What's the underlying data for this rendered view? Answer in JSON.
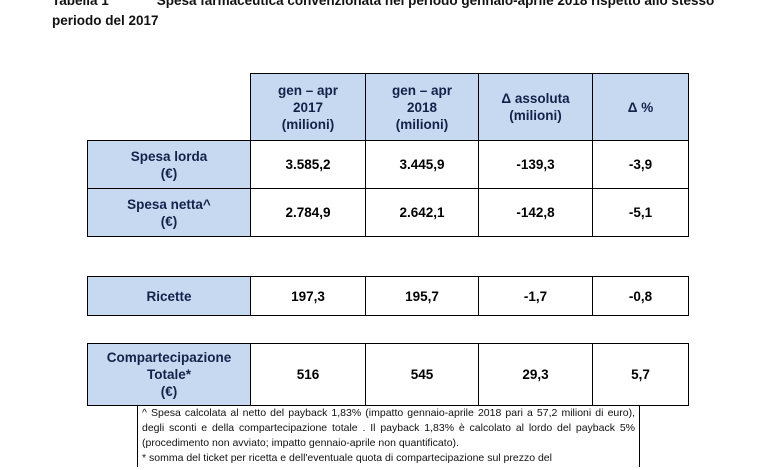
{
  "header": {
    "label": "Tabella 1",
    "title": "Spesa farmaceutica convenzionata nel periodo gennaio-aprile 2018 rispetto allo stesso periodo del 2017"
  },
  "table": {
    "columns": [
      "gen – apr\n2017\n(milioni)",
      "gen – apr\n2018\n(milioni)",
      "Δ assoluta\n(milioni)",
      "Δ %"
    ],
    "groups": [
      [
        [
          "Spesa lorda\n(€)",
          "3.585,2",
          "3.445,9",
          "-139,3",
          "-3,9"
        ],
        [
          "Spesa netta^\n(€)",
          "2.784,9",
          "2.642,1",
          "-142,8",
          "-5,1"
        ]
      ],
      [
        [
          "Ricette",
          "197,3",
          "195,7",
          "-1,7",
          "-0,8"
        ]
      ],
      [
        [
          "Compartecipazione\nTotale*\n(€)",
          "516",
          "545",
          "29,3",
          "5,7"
        ]
      ]
    ]
  },
  "footnotes": [
    "^ Spesa calcolata al netto del payback 1,83% (impatto gennaio-aprile 2018 pari a 57,2 milioni di euro), degli sconti e della compartecipazione totale . Il payback 1,83% è calcolato al lordo del payback 5%(procedimento non avviato; impatto gennaio-aprile non quantificato).",
    "* somma del ticket per ricetta e dell'eventuale quota di compartecipazione sul prezzo del"
  ]
}
